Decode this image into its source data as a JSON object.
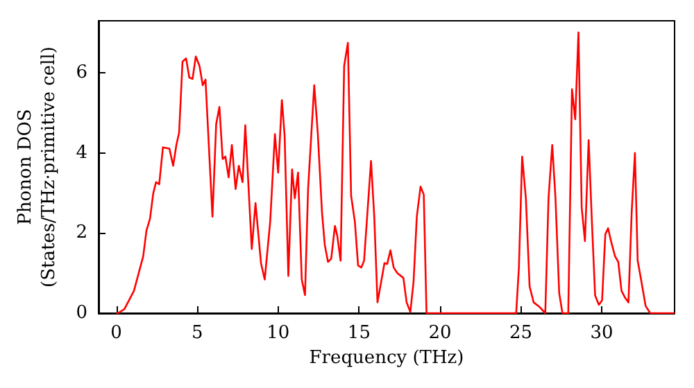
{
  "chart_data": {
    "type": "line",
    "xlabel": "Frequency (THz)",
    "ylabel": "Phonon DOS\n(States/THz·primitive cell)",
    "xlim": [
      -1.1,
      34.5
    ],
    "xticks": [
      0,
      5,
      10,
      15,
      20,
      25,
      30
    ],
    "ylim": [
      0,
      7.3
    ],
    "yticks": [
      0,
      2,
      4,
      6
    ],
    "marker": "none",
    "line_style": "solid",
    "series": [
      {
        "color": "#ff0000",
        "x": [
          0,
          0.1,
          0.5,
          1.09,
          1.66,
          1.86,
          2.08,
          2.28,
          2.45,
          2.65,
          2.88,
          3.28,
          3.51,
          3.71,
          3.88,
          4.09,
          4.31,
          4.51,
          4.71,
          4.91,
          5.14,
          5.34,
          5.51,
          5.94,
          6.17,
          6.37,
          6.57,
          6.74,
          6.94,
          7.14,
          7.37,
          7.57,
          7.8,
          7.97,
          8.37,
          8.6,
          8.94,
          9.17,
          9.51,
          9.8,
          10.0,
          10.23,
          10.4,
          10.63,
          10.86,
          11.03,
          11.23,
          11.46,
          11.66,
          11.85,
          12.23,
          12.45,
          12.71,
          12.88,
          13.08,
          13.28,
          13.51,
          13.65,
          13.86,
          14.08,
          14.31,
          14.51,
          14.74,
          14.94,
          15.14,
          15.31,
          15.74,
          15.94,
          16.14,
          16.37,
          16.57,
          16.74,
          16.94,
          17.14,
          17.37,
          17.74,
          17.94,
          18.17,
          18.37,
          18.57,
          18.8,
          19.0,
          19.17,
          24.71,
          24.88,
          25.08,
          25.31,
          25.54,
          25.79,
          26.17,
          26.51,
          26.71,
          26.94,
          27.14,
          27.37,
          27.57,
          27.93,
          28.16,
          28.36,
          28.56,
          28.76,
          28.96,
          29.19,
          29.39,
          29.59,
          29.82,
          30.02,
          30.22,
          30.39,
          30.59,
          30.82,
          31.02,
          31.22,
          31.45,
          31.65,
          31.85,
          32.05,
          32.22,
          32.45,
          32.71,
          33.0,
          34.5
        ],
        "values": [
          0,
          0,
          0.1,
          0.56,
          1.42,
          2.06,
          2.36,
          2.99,
          3.27,
          3.22,
          4.14,
          4.11,
          3.68,
          4.2,
          4.51,
          6.28,
          6.36,
          5.88,
          5.85,
          6.41,
          6.17,
          5.69,
          5.83,
          2.41,
          4.72,
          5.15,
          3.85,
          3.91,
          3.39,
          4.2,
          3.1,
          3.68,
          3.27,
          4.69,
          1.6,
          2.75,
          1.25,
          0.84,
          2.29,
          4.47,
          3.51,
          5.32,
          4.43,
          0.93,
          3.59,
          2.87,
          3.51,
          0.84,
          0.45,
          3.1,
          5.69,
          4.49,
          2.52,
          1.71,
          1.28,
          1.36,
          2.18,
          1.94,
          1.31,
          6.17,
          6.75,
          2.93,
          2.29,
          1.19,
          1.14,
          1.31,
          3.8,
          2.41,
          0.27,
          0.79,
          1.25,
          1.23,
          1.57,
          1.14,
          1.0,
          0.88,
          0.27,
          0.03,
          0.79,
          2.41,
          3.16,
          2.96,
          0,
          0,
          1.14,
          3.91,
          2.87,
          0.67,
          0.27,
          0.15,
          0,
          2.87,
          4.2,
          2.87,
          0.5,
          0,
          0,
          5.59,
          4.84,
          7.01,
          2.64,
          1.8,
          4.32,
          2.29,
          0.44,
          0.21,
          0.32,
          1.97,
          2.12,
          1.77,
          1.42,
          1.28,
          0.56,
          0.38,
          0.27,
          2.52,
          4.0,
          1.31,
          0.79,
          0.18,
          0,
          0
        ]
      }
    ]
  }
}
